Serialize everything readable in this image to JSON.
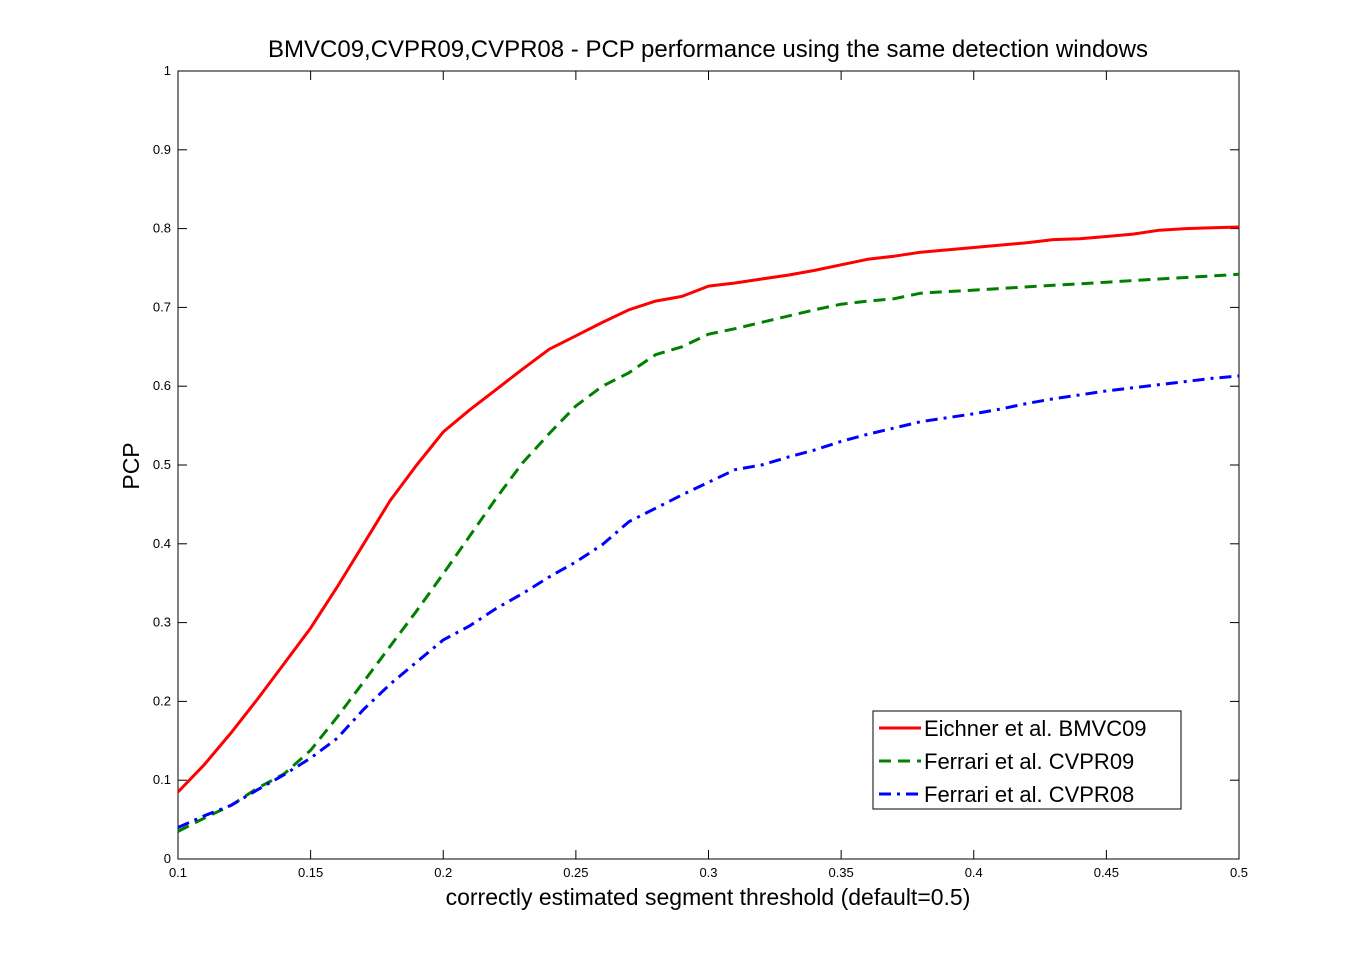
{
  "chart_data": {
    "type": "line",
    "title": "BMVC09,CVPR09,CVPR08 - PCP performance using the same detection windows",
    "xlabel": "correctly estimated segment threshold (default=0.5)",
    "ylabel": "PCP",
    "xlim": [
      0.1,
      0.5
    ],
    "ylim": [
      0,
      1
    ],
    "x_ticks": [
      0.1,
      0.15,
      0.2,
      0.25,
      0.3,
      0.35,
      0.4,
      0.45,
      0.5
    ],
    "x_tick_labels": [
      "0.1",
      "0.15",
      "0.2",
      "0.25",
      "0.3",
      "0.35",
      "0.4",
      "0.45",
      "0.5"
    ],
    "y_ticks": [
      0,
      0.1,
      0.2,
      0.3,
      0.4,
      0.5,
      0.6,
      0.7,
      0.8,
      0.9,
      1
    ],
    "y_tick_labels": [
      "0",
      "0.1",
      "0.2",
      "0.3",
      "0.4",
      "0.5",
      "0.6",
      "0.7",
      "0.8",
      "0.9",
      "1"
    ],
    "grid": false,
    "legend_position": "bottom-right",
    "x": [
      0.1,
      0.11,
      0.12,
      0.13,
      0.14,
      0.15,
      0.16,
      0.17,
      0.18,
      0.19,
      0.2,
      0.21,
      0.22,
      0.23,
      0.24,
      0.25,
      0.26,
      0.27,
      0.28,
      0.29,
      0.3,
      0.31,
      0.32,
      0.33,
      0.34,
      0.35,
      0.36,
      0.37,
      0.38,
      0.39,
      0.4,
      0.41,
      0.42,
      0.43,
      0.44,
      0.45,
      0.46,
      0.47,
      0.48,
      0.49,
      0.5
    ],
    "series": [
      {
        "name": "Eichner et al. BMVC09",
        "color": "#ff0000",
        "dash": "solid",
        "values": [
          0.085,
          0.12,
          0.16,
          0.203,
          0.248,
          0.293,
          0.345,
          0.4,
          0.455,
          0.5,
          0.542,
          0.57,
          0.596,
          0.622,
          0.647,
          0.664,
          0.681,
          0.697,
          0.708,
          0.714,
          0.727,
          0.731,
          0.736,
          0.741,
          0.747,
          0.754,
          0.761,
          0.765,
          0.77,
          0.773,
          0.776,
          0.779,
          0.782,
          0.786,
          0.787,
          0.79,
          0.793,
          0.798,
          0.8,
          0.801,
          0.802
        ]
      },
      {
        "name": "Ferrari et al. CVPR09",
        "color": "#008000",
        "dash": "dashed",
        "values": [
          0.035,
          0.052,
          0.068,
          0.09,
          0.108,
          0.138,
          0.18,
          0.225,
          0.27,
          0.315,
          0.362,
          0.41,
          0.458,
          0.503,
          0.54,
          0.575,
          0.6,
          0.617,
          0.64,
          0.65,
          0.666,
          0.673,
          0.681,
          0.689,
          0.697,
          0.704,
          0.708,
          0.711,
          0.718,
          0.72,
          0.722,
          0.724,
          0.726,
          0.728,
          0.73,
          0.732,
          0.734,
          0.736,
          0.738,
          0.74,
          0.742
        ]
      },
      {
        "name": "Ferrari et al. CVPR08",
        "color": "#0000ff",
        "dash": "dashdot",
        "values": [
          0.04,
          0.055,
          0.068,
          0.088,
          0.107,
          0.128,
          0.153,
          0.19,
          0.222,
          0.25,
          0.278,
          0.296,
          0.318,
          0.337,
          0.358,
          0.377,
          0.399,
          0.428,
          0.445,
          0.462,
          0.478,
          0.494,
          0.5,
          0.51,
          0.519,
          0.53,
          0.539,
          0.547,
          0.555,
          0.56,
          0.565,
          0.571,
          0.578,
          0.584,
          0.589,
          0.594,
          0.598,
          0.602,
          0.606,
          0.61,
          0.613
        ]
      }
    ]
  }
}
